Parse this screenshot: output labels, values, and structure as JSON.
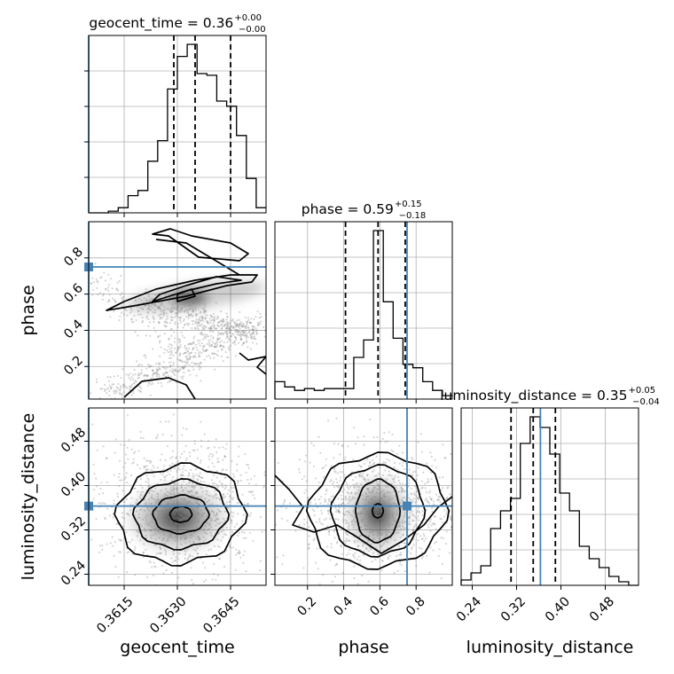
{
  "colors": {
    "truth": "#4682b4",
    "line": "#000000",
    "grid": "#b0b0b0",
    "scatter": "#888888"
  },
  "chart_data": {
    "type": "corner",
    "parameters": [
      "geocent_time",
      "phase",
      "luminosity_distance"
    ],
    "truth": {
      "geocent_time": 0.3605,
      "phase": 0.75,
      "luminosity_distance": 0.363
    },
    "ranges": {
      "geocent_time": [
        0.3605,
        0.3655
      ],
      "phase": [
        0.02,
        1.0
      ],
      "luminosity_distance": [
        0.22,
        0.54
      ]
    },
    "axis_ticks": {
      "geocent_time": {
        "values": [
          0.3615,
          0.363,
          0.3645
        ],
        "labels": [
          "0.3615",
          "0.3630",
          "0.3645"
        ]
      },
      "phase": {
        "values": [
          0.2,
          0.4,
          0.6,
          0.8
        ],
        "labels": [
          "0.2",
          "0.4",
          "0.6",
          "0.8"
        ]
      },
      "luminosity_distance": {
        "values": [
          0.24,
          0.32,
          0.4,
          0.48
        ],
        "labels": [
          "0.24",
          "0.32",
          "0.40",
          "0.48"
        ]
      }
    },
    "titles": [
      {
        "param": "geocent_time",
        "text": "geocent_time = 0.36",
        "plus": "+0.00",
        "minus": "−0.00"
      },
      {
        "param": "phase",
        "text": "phase = 0.59",
        "plus": "+0.15",
        "minus": "−0.18"
      },
      {
        "param": "luminosity_distance",
        "text": "luminosity_distance = 0.35",
        "plus": "+0.05",
        "minus": "−0.04"
      }
    ],
    "quantiles": {
      "geocent_time": [
        0.3629,
        0.3635,
        0.3645
      ],
      "phase": [
        0.41,
        0.59,
        0.74
      ],
      "luminosity_distance": [
        0.31,
        0.35,
        0.39
      ]
    },
    "histograms": {
      "geocent_time": [
        0.0,
        0.0,
        0.01,
        0.03,
        0.1,
        0.13,
        0.3,
        0.42,
        0.72,
        0.91,
        0.98,
        0.81,
        0.8,
        0.65,
        0.62,
        0.45,
        0.2,
        0.03
      ],
      "phase": [
        0.1,
        0.07,
        0.05,
        0.06,
        0.05,
        0.06,
        0.06,
        0.06,
        0.24,
        0.34,
        0.97,
        0.56,
        0.35,
        0.2,
        0.18,
        0.1,
        0.05,
        0.02
      ],
      "luminosity_distance": [
        0.03,
        0.07,
        0.11,
        0.32,
        0.42,
        0.49,
        0.8,
        0.95,
        0.89,
        0.74,
        0.52,
        0.42,
        0.22,
        0.15,
        0.1,
        0.05,
        0.02,
        0.0
      ]
    },
    "legend": "none",
    "grid": true
  }
}
